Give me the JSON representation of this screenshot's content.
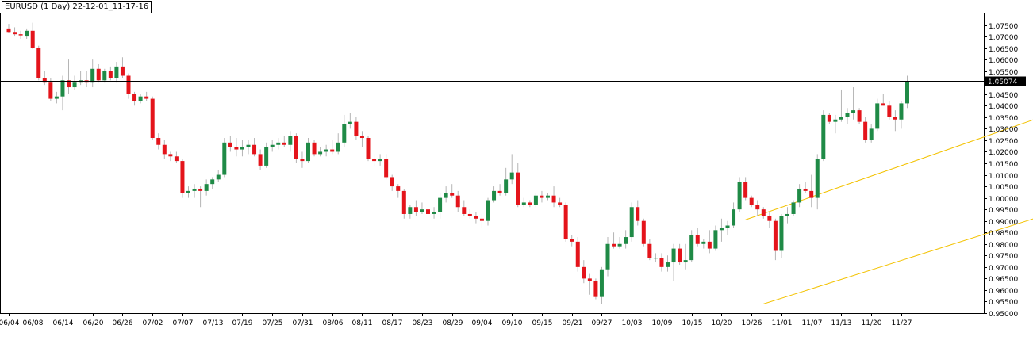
{
  "chart_title": "EURUSD (1 Day) 22-12-01_11-17-16",
  "current_price_label": "1.05074",
  "colors": {
    "bull": "#1f8a46",
    "bear": "#e4141b",
    "wick": "#b5b5b5",
    "channel": "#f3c200",
    "price_line": "#000000",
    "axis": "#000000"
  },
  "chart_data": {
    "type": "candlestick",
    "symbol": "EURUSD",
    "timeframe": "1 Day",
    "current_price": 1.05074,
    "ylim": [
      0.95,
      1.08
    ],
    "y_ticks": [
      0.95,
      0.955,
      0.96,
      0.965,
      0.97,
      0.975,
      0.98,
      0.985,
      0.99,
      0.995,
      1.0,
      1.005,
      1.01,
      1.015,
      1.02,
      1.025,
      1.03,
      1.035,
      1.04,
      1.045,
      1.05,
      1.055,
      1.06,
      1.065,
      1.07,
      1.075
    ],
    "y_tick_labels": [
      "0.95000",
      "0.95500",
      "0.96000",
      "0.96500",
      "0.97000",
      "0.97500",
      "0.98000",
      "0.98500",
      "0.99000",
      "0.99500",
      "1.00000",
      "1.00500",
      "1.01000",
      "1.01500",
      "1.02000",
      "1.02500",
      "1.03000",
      "1.03500",
      "1.04000",
      "1.04500",
      "1.05000",
      "1.05500",
      "1.06000",
      "1.06500",
      "1.07000",
      "1.07500"
    ],
    "x_tick_labels": [
      {
        "label": "06/04",
        "bar": 0
      },
      {
        "label": "06/08",
        "bar": 4
      },
      {
        "label": "06/14",
        "bar": 9
      },
      {
        "label": "06/20",
        "bar": 14
      },
      {
        "label": "06/26",
        "bar": 19
      },
      {
        "label": "07/02",
        "bar": 24
      },
      {
        "label": "07/07",
        "bar": 29
      },
      {
        "label": "07/13",
        "bar": 34
      },
      {
        "label": "07/19",
        "bar": 39
      },
      {
        "label": "07/25",
        "bar": 44
      },
      {
        "label": "07/31",
        "bar": 49
      },
      {
        "label": "08/06",
        "bar": 54
      },
      {
        "label": "08/11",
        "bar": 59
      },
      {
        "label": "08/17",
        "bar": 64
      },
      {
        "label": "08/23",
        "bar": 69
      },
      {
        "label": "08/29",
        "bar": 74
      },
      {
        "label": "09/04",
        "bar": 79
      },
      {
        "label": "09/10",
        "bar": 84
      },
      {
        "label": "09/15",
        "bar": 89
      },
      {
        "label": "09/21",
        "bar": 94
      },
      {
        "label": "09/27",
        "bar": 99
      },
      {
        "label": "10/03",
        "bar": 104
      },
      {
        "label": "10/09",
        "bar": 109
      },
      {
        "label": "10/15",
        "bar": 114
      },
      {
        "label": "10/20",
        "bar": 119
      },
      {
        "label": "10/26",
        "bar": 124
      },
      {
        "label": "11/01",
        "bar": 129
      },
      {
        "label": "11/07",
        "bar": 134
      },
      {
        "label": "11/13",
        "bar": 139
      },
      {
        "label": "11/20",
        "bar": 144
      },
      {
        "label": "11/27",
        "bar": 149
      }
    ],
    "ohlc": [
      [
        1.0735,
        1.0755,
        1.0715,
        1.072
      ],
      [
        1.072,
        1.074,
        1.07,
        1.071
      ],
      [
        1.071,
        1.0725,
        1.069,
        1.0705
      ],
      [
        1.07,
        1.0735,
        1.069,
        1.0725
      ],
      [
        1.0725,
        1.076,
        1.0645,
        1.065
      ],
      [
        1.065,
        1.066,
        1.051,
        1.052
      ],
      [
        1.052,
        1.055,
        1.049,
        1.05
      ],
      [
        1.05,
        1.052,
        1.042,
        1.043
      ],
      [
        1.043,
        1.046,
        1.041,
        1.044
      ],
      [
        1.044,
        1.053,
        1.038,
        1.051
      ],
      [
        1.051,
        1.06,
        1.045,
        1.048
      ],
      [
        1.048,
        1.053,
        1.047,
        1.05
      ],
      [
        1.05,
        1.055,
        1.049,
        1.051
      ],
      [
        1.051,
        1.055,
        1.048,
        1.05
      ],
      [
        1.05,
        1.06,
        1.048,
        1.056
      ],
      [
        1.056,
        1.058,
        1.05,
        1.051
      ],
      [
        1.051,
        1.056,
        1.05,
        1.055
      ],
      [
        1.055,
        1.057,
        1.051,
        1.052
      ],
      [
        1.052,
        1.059,
        1.05,
        1.057
      ],
      [
        1.057,
        1.061,
        1.052,
        1.053
      ],
      [
        1.053,
        1.054,
        1.043,
        1.045
      ],
      [
        1.045,
        1.046,
        1.04,
        1.042
      ],
      [
        1.042,
        1.045,
        1.041,
        1.044
      ],
      [
        1.044,
        1.046,
        1.042,
        1.043
      ],
      [
        1.043,
        1.044,
        1.025,
        1.026
      ],
      [
        1.026,
        1.028,
        1.021,
        1.023
      ],
      [
        1.023,
        1.025,
        1.017,
        1.019
      ],
      [
        1.019,
        1.02,
        1.016,
        1.018
      ],
      [
        1.018,
        1.02,
        1.015,
        1.016
      ],
      [
        1.016,
        1.017,
        1.0,
        1.002
      ],
      [
        1.002,
        1.005,
        1.0,
        1.003
      ],
      [
        1.003,
        1.006,
        1.0,
        1.004
      ],
      [
        1.004,
        1.005,
        0.996,
        1.003
      ],
      [
        1.003,
        1.008,
        1.001,
        1.006
      ],
      [
        1.006,
        1.009,
        1.004,
        1.008
      ],
      [
        1.008,
        1.012,
        1.007,
        1.01
      ],
      [
        1.01,
        1.026,
        1.009,
        1.024
      ],
      [
        1.024,
        1.027,
        1.02,
        1.022
      ],
      [
        1.022,
        1.026,
        1.018,
        1.021
      ],
      [
        1.021,
        1.025,
        1.018,
        1.022
      ],
      [
        1.022,
        1.025,
        1.019,
        1.023
      ],
      [
        1.023,
        1.026,
        1.018,
        1.019
      ],
      [
        1.019,
        1.021,
        1.012,
        1.014
      ],
      [
        1.014,
        1.024,
        1.013,
        1.022
      ],
      [
        1.022,
        1.025,
        1.02,
        1.023
      ],
      [
        1.023,
        1.026,
        1.021,
        1.024
      ],
      [
        1.024,
        1.027,
        1.022,
        1.023
      ],
      [
        1.023,
        1.029,
        1.02,
        1.027
      ],
      [
        1.027,
        1.028,
        1.015,
        1.017
      ],
      [
        1.017,
        1.02,
        1.013,
        1.016
      ],
      [
        1.016,
        1.026,
        1.015,
        1.024
      ],
      [
        1.024,
        1.025,
        1.018,
        1.019
      ],
      [
        1.019,
        1.022,
        1.018,
        1.02
      ],
      [
        1.02,
        1.023,
        1.018,
        1.021
      ],
      [
        1.021,
        1.025,
        1.019,
        1.02
      ],
      [
        1.02,
        1.028,
        1.019,
        1.024
      ],
      [
        1.024,
        1.036,
        1.022,
        1.032
      ],
      [
        1.032,
        1.037,
        1.03,
        1.033
      ],
      [
        1.033,
        1.035,
        1.025,
        1.027
      ],
      [
        1.027,
        1.029,
        1.022,
        1.026
      ],
      [
        1.026,
        1.027,
        1.016,
        1.017
      ],
      [
        1.017,
        1.019,
        1.014,
        1.016
      ],
      [
        1.016,
        1.019,
        1.014,
        1.017
      ],
      [
        1.017,
        1.019,
        1.008,
        1.009
      ],
      [
        1.009,
        1.01,
        1.003,
        1.005
      ],
      [
        1.005,
        1.006,
        1.0,
        1.003
      ],
      [
        1.003,
        1.004,
        0.991,
        0.993
      ],
      [
        0.993,
        0.997,
        0.991,
        0.996
      ],
      [
        0.996,
        0.999,
        0.992,
        0.994
      ],
      [
        0.994,
        0.998,
        0.993,
        0.995
      ],
      [
        0.995,
        1.003,
        0.992,
        0.993
      ],
      [
        0.993,
        0.996,
        0.991,
        0.994
      ],
      [
        0.994,
        1.002,
        0.991,
        1.0
      ],
      [
        1.0,
        1.005,
        0.998,
        1.002
      ],
      [
        1.002,
        1.006,
        1.0,
        1.001
      ],
      [
        1.001,
        1.003,
        0.994,
        0.996
      ],
      [
        0.996,
        0.999,
        0.992,
        0.993
      ],
      [
        0.993,
        0.995,
        0.991,
        0.992
      ],
      [
        0.992,
        0.994,
        0.989,
        0.991
      ],
      [
        0.991,
        0.993,
        0.987,
        0.99
      ],
      [
        0.99,
        1.0,
        0.988,
        0.999
      ],
      [
        0.999,
        1.005,
        0.998,
        1.003
      ],
      [
        1.003,
        1.006,
        1.001,
        1.002
      ],
      [
        1.002,
        1.013,
        1.001,
        1.008
      ],
      [
        1.008,
        1.019,
        1.006,
        1.011
      ],
      [
        1.011,
        1.015,
        0.996,
        0.997
      ],
      [
        0.997,
        1.0,
        0.996,
        0.998
      ],
      [
        0.998,
        0.999,
        0.996,
        0.997
      ],
      [
        0.997,
        1.002,
        0.996,
        1.001
      ],
      [
        1.001,
        1.003,
        0.998,
        1.0
      ],
      [
        1.0,
        1.002,
        0.999,
        1.001
      ],
      [
        1.001,
        1.005,
        0.996,
        0.998
      ],
      [
        0.998,
        1.0,
        0.996,
        0.997
      ],
      [
        0.997,
        0.998,
        0.981,
        0.982
      ],
      [
        0.982,
        0.984,
        0.979,
        0.981
      ],
      [
        0.981,
        0.983,
        0.968,
        0.97
      ],
      [
        0.97,
        0.973,
        0.963,
        0.965
      ],
      [
        0.965,
        0.967,
        0.958,
        0.964
      ],
      [
        0.964,
        0.965,
        0.956,
        0.957
      ],
      [
        0.957,
        0.97,
        0.954,
        0.969
      ],
      [
        0.969,
        0.983,
        0.966,
        0.98
      ],
      [
        0.98,
        0.985,
        0.978,
        0.979
      ],
      [
        0.979,
        0.983,
        0.978,
        0.98
      ],
      [
        0.98,
        0.986,
        0.978,
        0.983
      ],
      [
        0.983,
        0.998,
        0.981,
        0.996
      ],
      [
        0.996,
        0.999,
        0.988,
        0.99
      ],
      [
        0.99,
        0.991,
        0.979,
        0.98
      ],
      [
        0.98,
        0.982,
        0.973,
        0.974
      ],
      [
        0.974,
        0.976,
        0.972,
        0.974
      ],
      [
        0.974,
        0.976,
        0.968,
        0.97
      ],
      [
        0.97,
        0.975,
        0.968,
        0.972
      ],
      [
        0.972,
        0.98,
        0.964,
        0.978
      ],
      [
        0.978,
        0.98,
        0.971,
        0.972
      ],
      [
        0.972,
        0.98,
        0.969,
        0.973
      ],
      [
        0.973,
        0.986,
        0.972,
        0.984
      ],
      [
        0.984,
        0.987,
        0.979,
        0.98
      ],
      [
        0.98,
        0.982,
        0.978,
        0.981
      ],
      [
        0.981,
        0.986,
        0.976,
        0.978
      ],
      [
        0.978,
        0.988,
        0.977,
        0.986
      ],
      [
        0.986,
        0.991,
        0.981,
        0.987
      ],
      [
        0.987,
        0.99,
        0.984,
        0.988
      ],
      [
        0.988,
        0.998,
        0.987,
        0.995
      ],
      [
        0.995,
        1.009,
        0.994,
        1.007
      ],
      [
        1.007,
        1.009,
        0.999,
        1.0
      ],
      [
        1.0,
        1.001,
        0.996,
        0.997
      ],
      [
        0.997,
        0.999,
        0.992,
        0.995
      ],
      [
        0.995,
        0.996,
        0.991,
        0.992
      ],
      [
        0.992,
        0.994,
        0.987,
        0.99
      ],
      [
        0.99,
        0.991,
        0.973,
        0.977
      ],
      [
        0.977,
        0.993,
        0.974,
        0.992
      ],
      [
        0.992,
        0.996,
        0.989,
        0.993
      ],
      [
        0.993,
        0.999,
        0.992,
        0.998
      ],
      [
        0.998,
        1.006,
        0.996,
        1.004
      ],
      [
        1.004,
        1.007,
        1.002,
        1.003
      ],
      [
        1.003,
        1.01,
        0.996,
        1.0
      ],
      [
        1.0,
        1.019,
        0.995,
        1.017
      ],
      [
        1.017,
        1.038,
        1.016,
        1.036
      ],
      [
        1.036,
        1.037,
        1.032,
        1.033
      ],
      [
        1.033,
        1.036,
        1.028,
        1.034
      ],
      [
        1.034,
        1.047,
        1.033,
        1.035
      ],
      [
        1.035,
        1.039,
        1.032,
        1.037
      ],
      [
        1.037,
        1.048,
        1.034,
        1.038
      ],
      [
        1.038,
        1.039,
        1.032,
        1.033
      ],
      [
        1.033,
        1.035,
        1.024,
        1.025
      ],
      [
        1.025,
        1.032,
        1.024,
        1.03
      ],
      [
        1.03,
        1.043,
        1.029,
        1.041
      ],
      [
        1.041,
        1.045,
        1.04,
        1.04
      ],
      [
        1.04,
        1.042,
        1.034,
        1.035
      ],
      [
        1.035,
        1.038,
        1.029,
        1.034
      ],
      [
        1.034,
        1.042,
        1.03,
        1.041
      ],
      [
        1.041,
        1.053,
        1.039,
        1.0507
      ]
    ],
    "channel": {
      "upper": {
        "from": {
          "bar": 123,
          "y": 0.9905
        },
        "to": {
          "bar": 200,
          "y": 1.06
        }
      },
      "lower": {
        "from": {
          "bar": 126,
          "y": 0.954
        },
        "to": {
          "bar": 212,
          "y": 1.0245
        }
      }
    }
  }
}
